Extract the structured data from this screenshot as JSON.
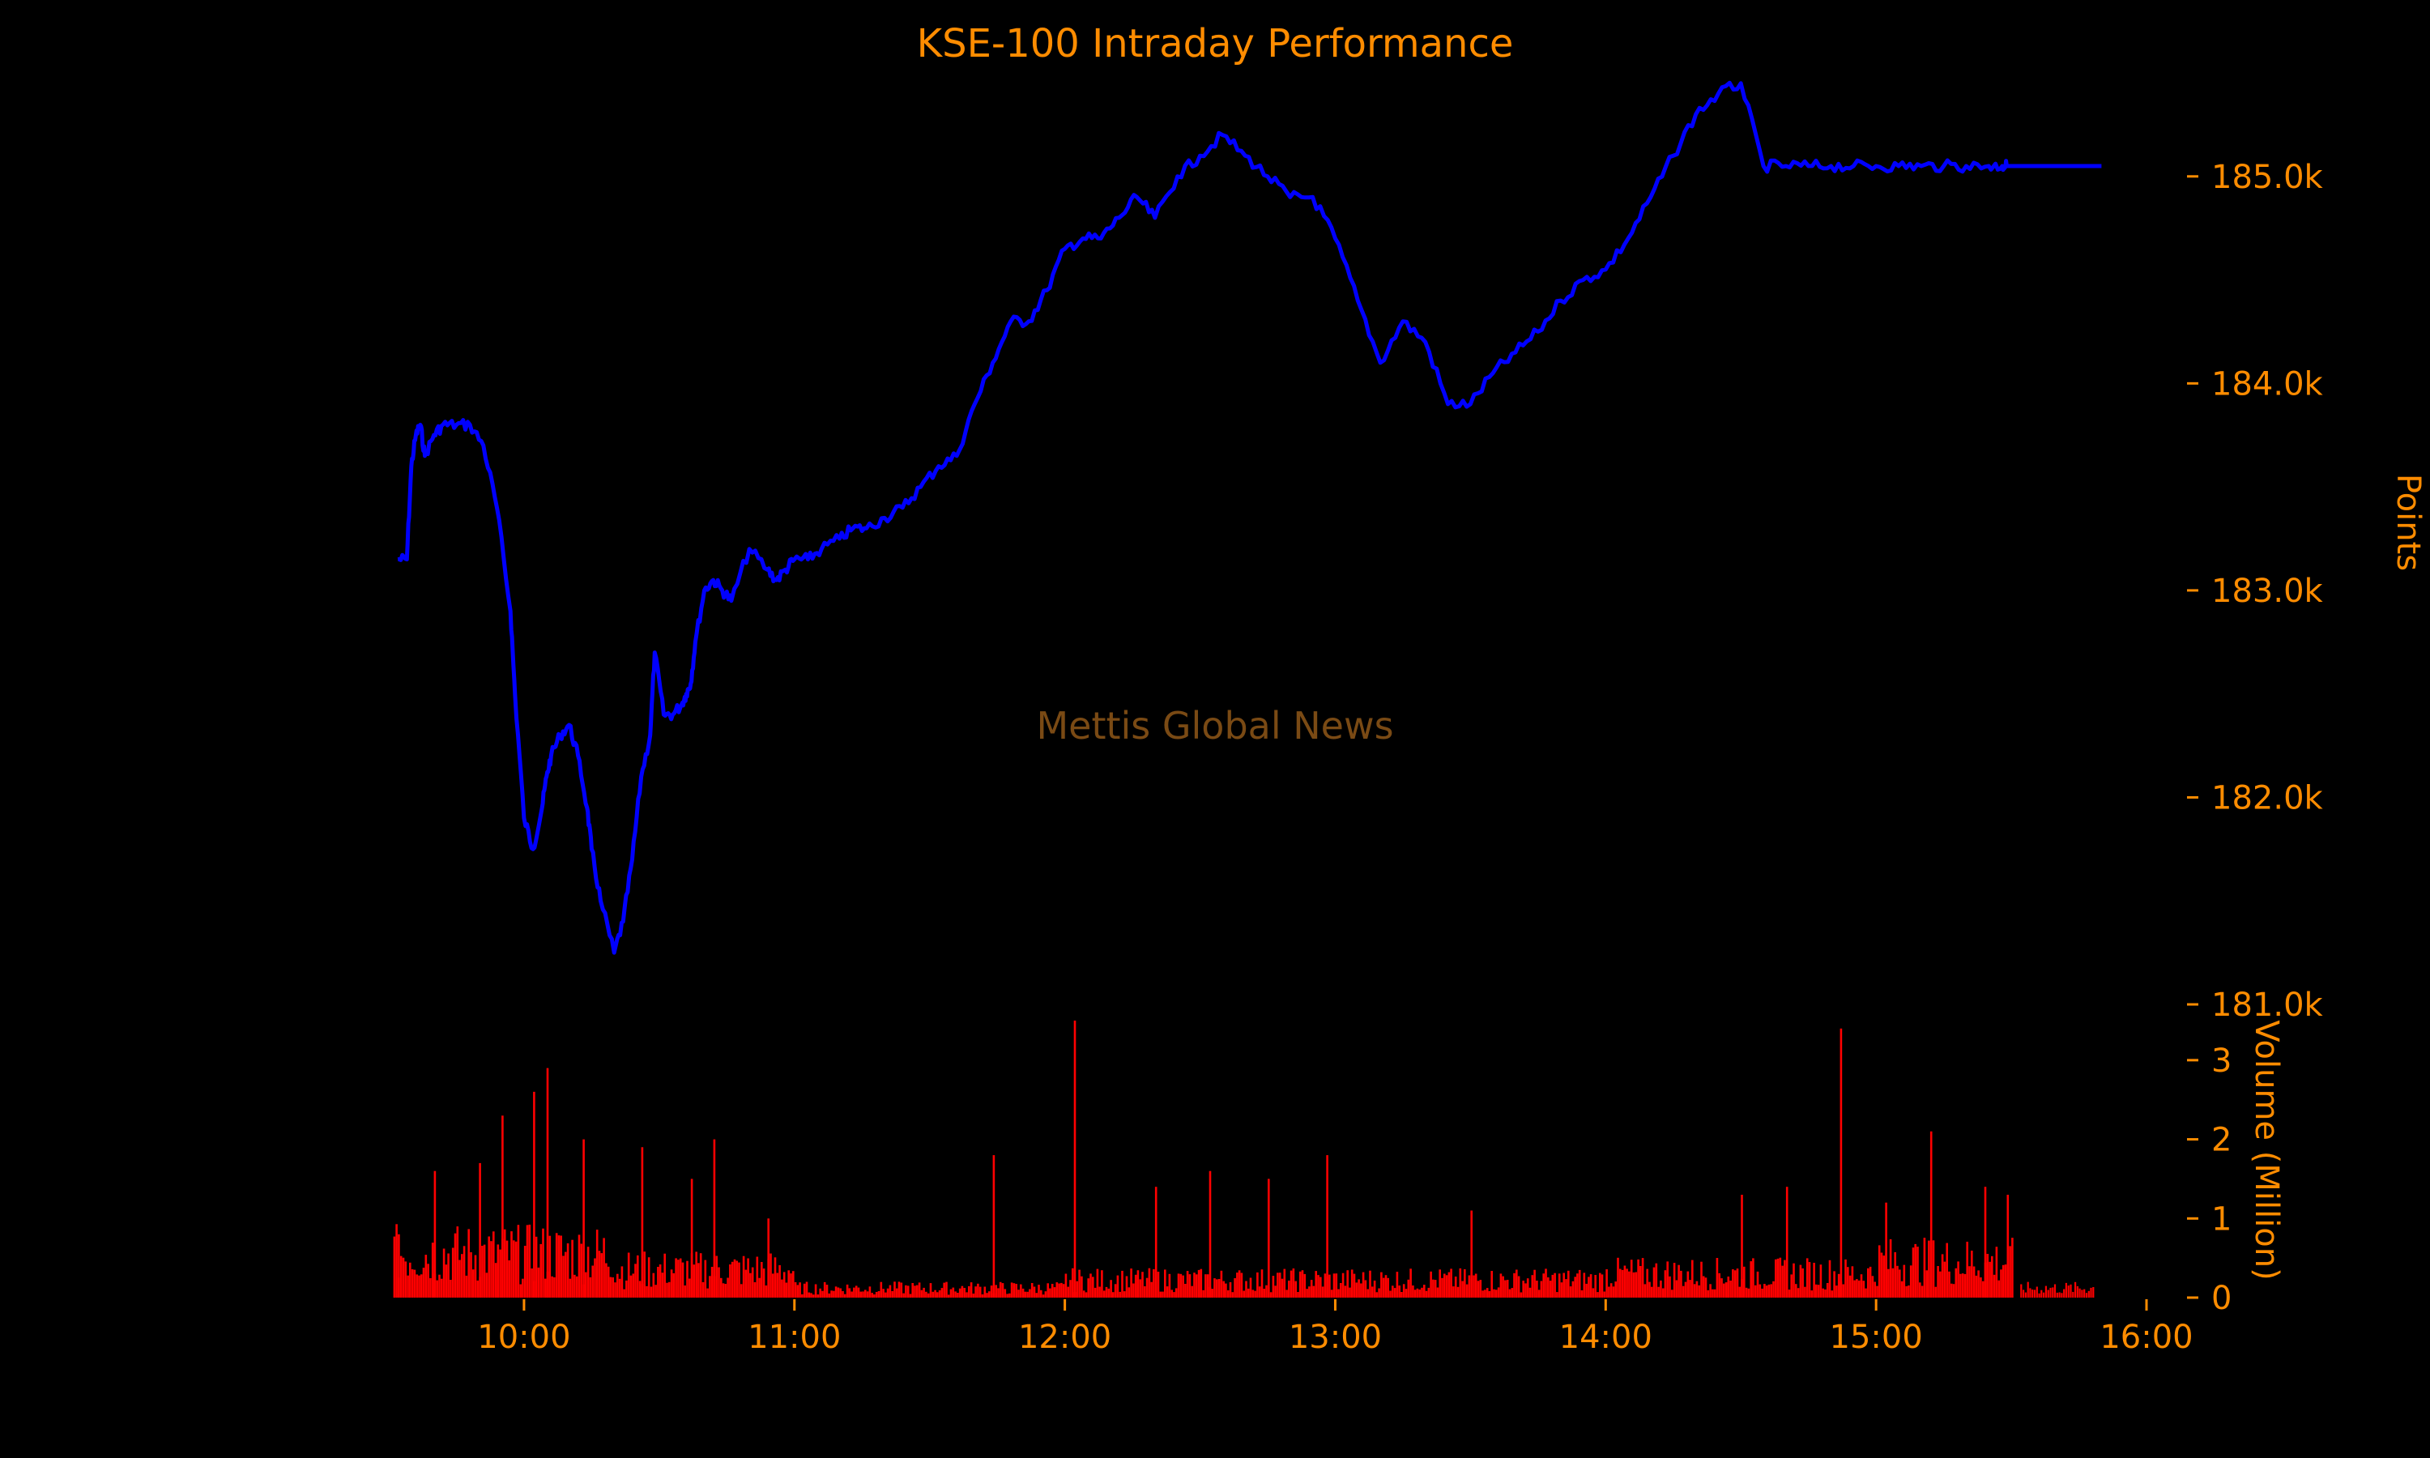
{
  "chart_data": [
    {
      "type": "line",
      "title": "KSE-100 Intraday Performance",
      "ylabel": "Points",
      "xlabel": "",
      "ylim": [
        181000,
        185500
      ],
      "y_ticks": [
        181000,
        182000,
        183000,
        184000,
        185000
      ],
      "y_tick_labels": [
        "181.0k",
        "182.0k",
        "183.0k",
        "184.0k",
        "185.0k"
      ],
      "y_axis_position": "right",
      "xlim": [
        "09:30",
        "16:00"
      ],
      "x_ticks": [
        "10:00",
        "11:00",
        "12:00",
        "13:00",
        "14:00",
        "15:00",
        "16:00"
      ],
      "line_color": "#0000FF",
      "grid": false,
      "series": [
        {
          "x": [
            "09:32",
            "09:34",
            "09:35",
            "09:36",
            "09:37",
            "09:38",
            "09:40",
            "09:42",
            "09:45",
            "09:48",
            "09:51",
            "09:54",
            "09:57",
            "09:58",
            "10:00",
            "10:02",
            "10:04",
            "10:05",
            "10:06",
            "10:08",
            "10:10",
            "10:12",
            "10:14",
            "10:15",
            "10:17",
            "10:20",
            "10:22",
            "10:24",
            "10:26",
            "10:28",
            "10:29",
            "10:31",
            "10:33",
            "10:35",
            "10:36",
            "10:37",
            "10:38",
            "10:40",
            "10:42",
            "10:44",
            "10:46",
            "10:50",
            "10:54",
            "10:56",
            "10:58",
            "11:00",
            "11:03",
            "11:06",
            "11:10",
            "11:13",
            "11:16",
            "11:20",
            "11:24",
            "11:28",
            "11:32",
            "11:36",
            "11:40",
            "11:44",
            "11:48",
            "11:52",
            "11:56",
            "12:00",
            "12:04",
            "12:08",
            "12:12",
            "12:16",
            "12:20",
            "12:25",
            "12:30",
            "12:35",
            "12:40",
            "12:45",
            "12:50",
            "12:55",
            "13:00",
            "13:05",
            "13:10",
            "13:15",
            "13:20",
            "13:25",
            "13:30",
            "13:35",
            "13:40",
            "13:45",
            "13:50",
            "13:55",
            "14:00",
            "14:05",
            "14:10",
            "14:15",
            "14:20",
            "14:25",
            "14:30",
            "14:35",
            "14:40",
            "14:45",
            "14:50",
            "14:55",
            "15:00",
            "15:05",
            "15:10",
            "15:15",
            "15:20",
            "15:25",
            "15:28",
            "15:29",
            "15:30",
            "15:40",
            "15:50"
          ],
          "y": [
            183150,
            183150,
            183600,
            183750,
            183800,
            183650,
            183750,
            183800,
            183800,
            183800,
            183700,
            183400,
            182900,
            182500,
            181900,
            181750,
            181950,
            182100,
            182200,
            182300,
            182350,
            182200,
            181950,
            181750,
            181500,
            181250,
            181400,
            181700,
            182100,
            182300,
            182700,
            182400,
            182400,
            182450,
            182500,
            182550,
            182750,
            183000,
            183050,
            183000,
            182950,
            183200,
            183100,
            183050,
            183100,
            183150,
            183150,
            183200,
            183250,
            183300,
            183300,
            183350,
            183400,
            183500,
            183600,
            183650,
            183900,
            184100,
            184300,
            184300,
            184450,
            184650,
            184700,
            184700,
            184800,
            184900,
            184800,
            185000,
            185100,
            185200,
            185100,
            185000,
            184900,
            184900,
            184700,
            184400,
            184100,
            184300,
            184200,
            183900,
            183900,
            184050,
            184150,
            184250,
            184400,
            184500,
            184550,
            184700,
            184900,
            185100,
            185300,
            185400,
            185450,
            185050,
            185050,
            185050,
            185050,
            185050,
            185050,
            185050,
            185050,
            185050,
            185050,
            185050,
            185050,
            185050,
            185050,
            185050,
            185050
          ]
        }
      ]
    },
    {
      "type": "bar",
      "title": "",
      "ylabel": "Volume (Million)",
      "xlabel": "",
      "ylim": [
        0,
        3.5
      ],
      "y_ticks": [
        0,
        1,
        2,
        3
      ],
      "y_tick_labels": [
        "0",
        "1",
        "2",
        "3"
      ],
      "y_axis_position": "right",
      "bar_color": "#FF0000",
      "grid": false,
      "spikes": [
        {
          "x": "09:32",
          "y": 0.8
        },
        {
          "x": "09:40",
          "y": 1.6
        },
        {
          "x": "09:50",
          "y": 1.7
        },
        {
          "x": "09:55",
          "y": 2.3
        },
        {
          "x": "10:02",
          "y": 2.6
        },
        {
          "x": "10:05",
          "y": 2.9
        },
        {
          "x": "10:13",
          "y": 2.0
        },
        {
          "x": "10:26",
          "y": 1.9
        },
        {
          "x": "10:37",
          "y": 1.5
        },
        {
          "x": "10:42",
          "y": 2.0
        },
        {
          "x": "10:54",
          "y": 1.0
        },
        {
          "x": "11:44",
          "y": 1.8
        },
        {
          "x": "12:02",
          "y": 3.5
        },
        {
          "x": "12:20",
          "y": 1.4
        },
        {
          "x": "12:32",
          "y": 1.6
        },
        {
          "x": "12:45",
          "y": 1.5
        },
        {
          "x": "12:58",
          "y": 1.8
        },
        {
          "x": "13:30",
          "y": 1.1
        },
        {
          "x": "14:30",
          "y": 1.3
        },
        {
          "x": "14:40",
          "y": 1.4
        },
        {
          "x": "14:52",
          "y": 3.4
        },
        {
          "x": "15:02",
          "y": 1.2
        },
        {
          "x": "15:12",
          "y": 2.1
        },
        {
          "x": "15:24",
          "y": 1.4
        },
        {
          "x": "15:29",
          "y": 1.3
        }
      ],
      "after_hours": {
        "x_start": "15:32",
        "x_end": "15:48",
        "y": 0.2
      }
    }
  ],
  "watermark": "Mettis Global News"
}
